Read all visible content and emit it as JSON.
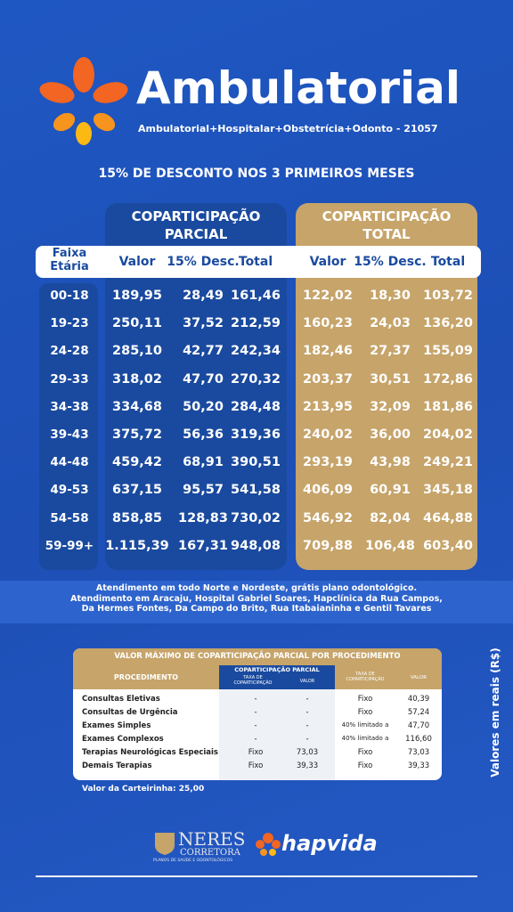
{
  "header": {
    "title": "Ambulatorial",
    "subtitle": "Ambulatorial+Hospitalar+Obstetrícia+Odonto - 21057"
  },
  "promo": "15% DE DESCONTO NOS 3 PRIMEIROS MESES",
  "price_table": {
    "groups": [
      "COPARTICIPAÇÃO PARCIAL",
      "COPARTICIPAÇÃO TOTAL"
    ],
    "columns": [
      "Faixa Etária",
      "Valor",
      "15% Desc.",
      "Total",
      "Valor",
      "15% Desc.",
      "Total"
    ],
    "rows": [
      [
        "00-18",
        "189,95",
        "28,49",
        "161,46",
        "122,02",
        "18,30",
        "103,72"
      ],
      [
        "19-23",
        "250,11",
        "37,52",
        "212,59",
        "160,23",
        "24,03",
        "136,20"
      ],
      [
        "24-28",
        "285,10",
        "42,77",
        "242,34",
        "182,46",
        "27,37",
        "155,09"
      ],
      [
        "29-33",
        "318,02",
        "47,70",
        "270,32",
        "203,37",
        "30,51",
        "172,86"
      ],
      [
        "34-38",
        "334,68",
        "50,20",
        "284,48",
        "213,95",
        "32,09",
        "181,86"
      ],
      [
        "39-43",
        "375,72",
        "56,36",
        "319,36",
        "240,02",
        "36,00",
        "204,02"
      ],
      [
        "44-48",
        "459,42",
        "68,91",
        "390,51",
        "293,19",
        "43,98",
        "249,21"
      ],
      [
        "49-53",
        "637,15",
        "95,57",
        "541,58",
        "406,09",
        "60,91",
        "345,18"
      ],
      [
        "54-58",
        "858,85",
        "128,83",
        "730,02",
        "546,92",
        "82,04",
        "464,88"
      ],
      [
        "59-99+",
        "1.115,39",
        "167,31",
        "948,08",
        "709,88",
        "106,48",
        "603,40"
      ]
    ]
  },
  "notice": [
    "Atendimento em todo Norte e Nordeste, grátis plano odontológico.",
    "Atendimento em Aracaju, Hospital Gabriel Soares, Hapclínica da Rua Campos,",
    "Da Hermes Fontes, Da Campo do Brito, Rua Itabaianinha e Gentil Tavares"
  ],
  "side_note": "Valores em reais (R$)",
  "procedure_table": {
    "title": "VALOR MÁXIMO DE COPARTICIPAÇÃO PARCIAL POR PROCEDIMENTO",
    "headers": {
      "procedure": "PROCEDIMENTO",
      "parcial_group": "COPARTICIPAÇÃO PARCIAL",
      "parcial_rate": "TAXA DE COPARTICIPAÇÃO",
      "parcial_value": "VALOR",
      "total_rate": "TAXA DE COPARTICIPAÇÃO",
      "total_value": "VALOR"
    },
    "rows": [
      [
        "Consultas Eletivas",
        "-",
        "-",
        "Fixo",
        "40,39"
      ],
      [
        "Consultas de Urgência",
        "-",
        "-",
        "Fixo",
        "57,24"
      ],
      [
        "Exames Simples",
        "-",
        "-",
        "40% limitado a",
        "47,70"
      ],
      [
        "Exames Complexos",
        "-",
        "-",
        "40% limitado a",
        "116,60"
      ],
      [
        "Terapias Neurológicas Especiais",
        "Fixo",
        "73,03",
        "Fixo",
        "73,03"
      ],
      [
        "Demais Terapias",
        "Fixo",
        "39,33",
        "Fixo",
        "39,33"
      ]
    ]
  },
  "card_fee": "Valor da Carteirinha: 25,00",
  "footer": {
    "broker_name": "NERES",
    "broker_sub": "CORRETORA",
    "broker_tagline": "PLANOS DE SAÚDE E ODONTOLÓGICOS",
    "brand": "hapvida"
  }
}
